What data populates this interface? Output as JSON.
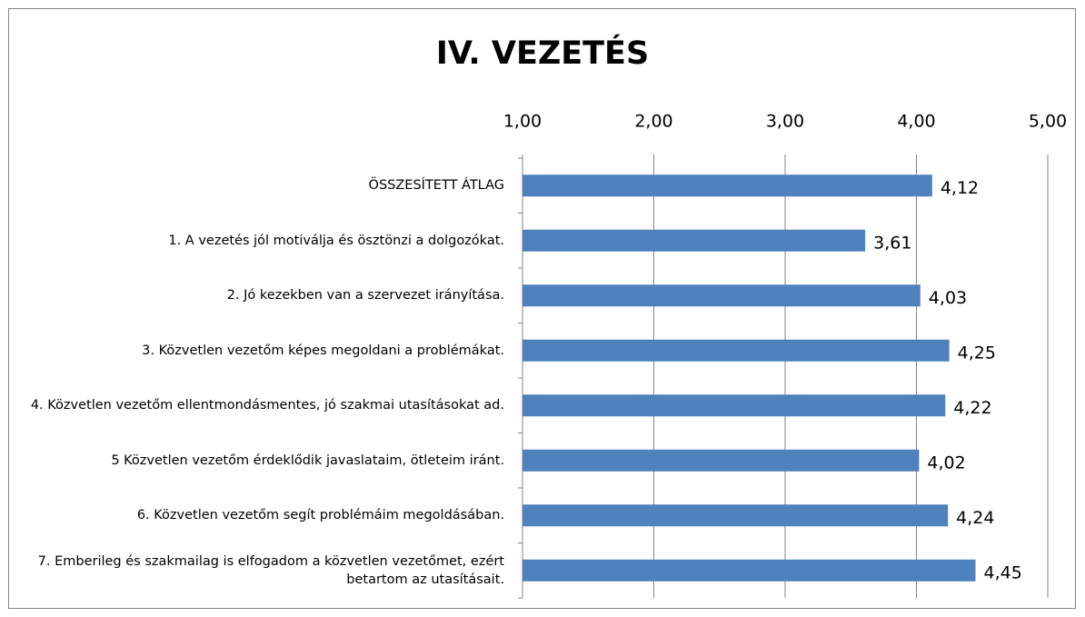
{
  "chart_data": {
    "type": "bar",
    "orientation": "horizontal",
    "title": "IV. VEZETÉS",
    "categories": [
      "ÖSSZESÍTETT ÁTLAG",
      "1. A vezetés jól motiválja és ösztönzi a dolgozókat.",
      "2. Jó kezekben van a szervezet irányítása.",
      "3. Közvetlen vezetőm képes megoldani a problémákat.",
      "4. Közvetlen vezetőm ellentmondásmentes, jó szakmai utasításokat ad.",
      "5 Közvetlen vezetőm érdeklődik javaslataim, ötleteim iránt.",
      "6. Közvetlen vezetőm segít problémáim megoldásában.",
      "7. Emberileg és szakmailag is elfogadom a közvetlen vezetőmet, ezért betartom az utasításait."
    ],
    "values": [
      4.12,
      3.61,
      4.03,
      4.25,
      4.22,
      4.02,
      4.24,
      4.45
    ],
    "value_labels": [
      "4,12",
      "3,61",
      "4,03",
      "4,25",
      "4,22",
      "4,02",
      "4,24",
      "4,45"
    ],
    "color": "#4f81bd",
    "xlim": [
      1,
      5
    ],
    "xticks": [
      {
        "value": 1,
        "label": "1,00"
      },
      {
        "value": 2,
        "label": "2,00"
      },
      {
        "value": 3,
        "label": "3,00"
      },
      {
        "value": 4,
        "label": "4,00"
      },
      {
        "value": 5,
        "label": "5,00"
      }
    ],
    "grid": true
  }
}
